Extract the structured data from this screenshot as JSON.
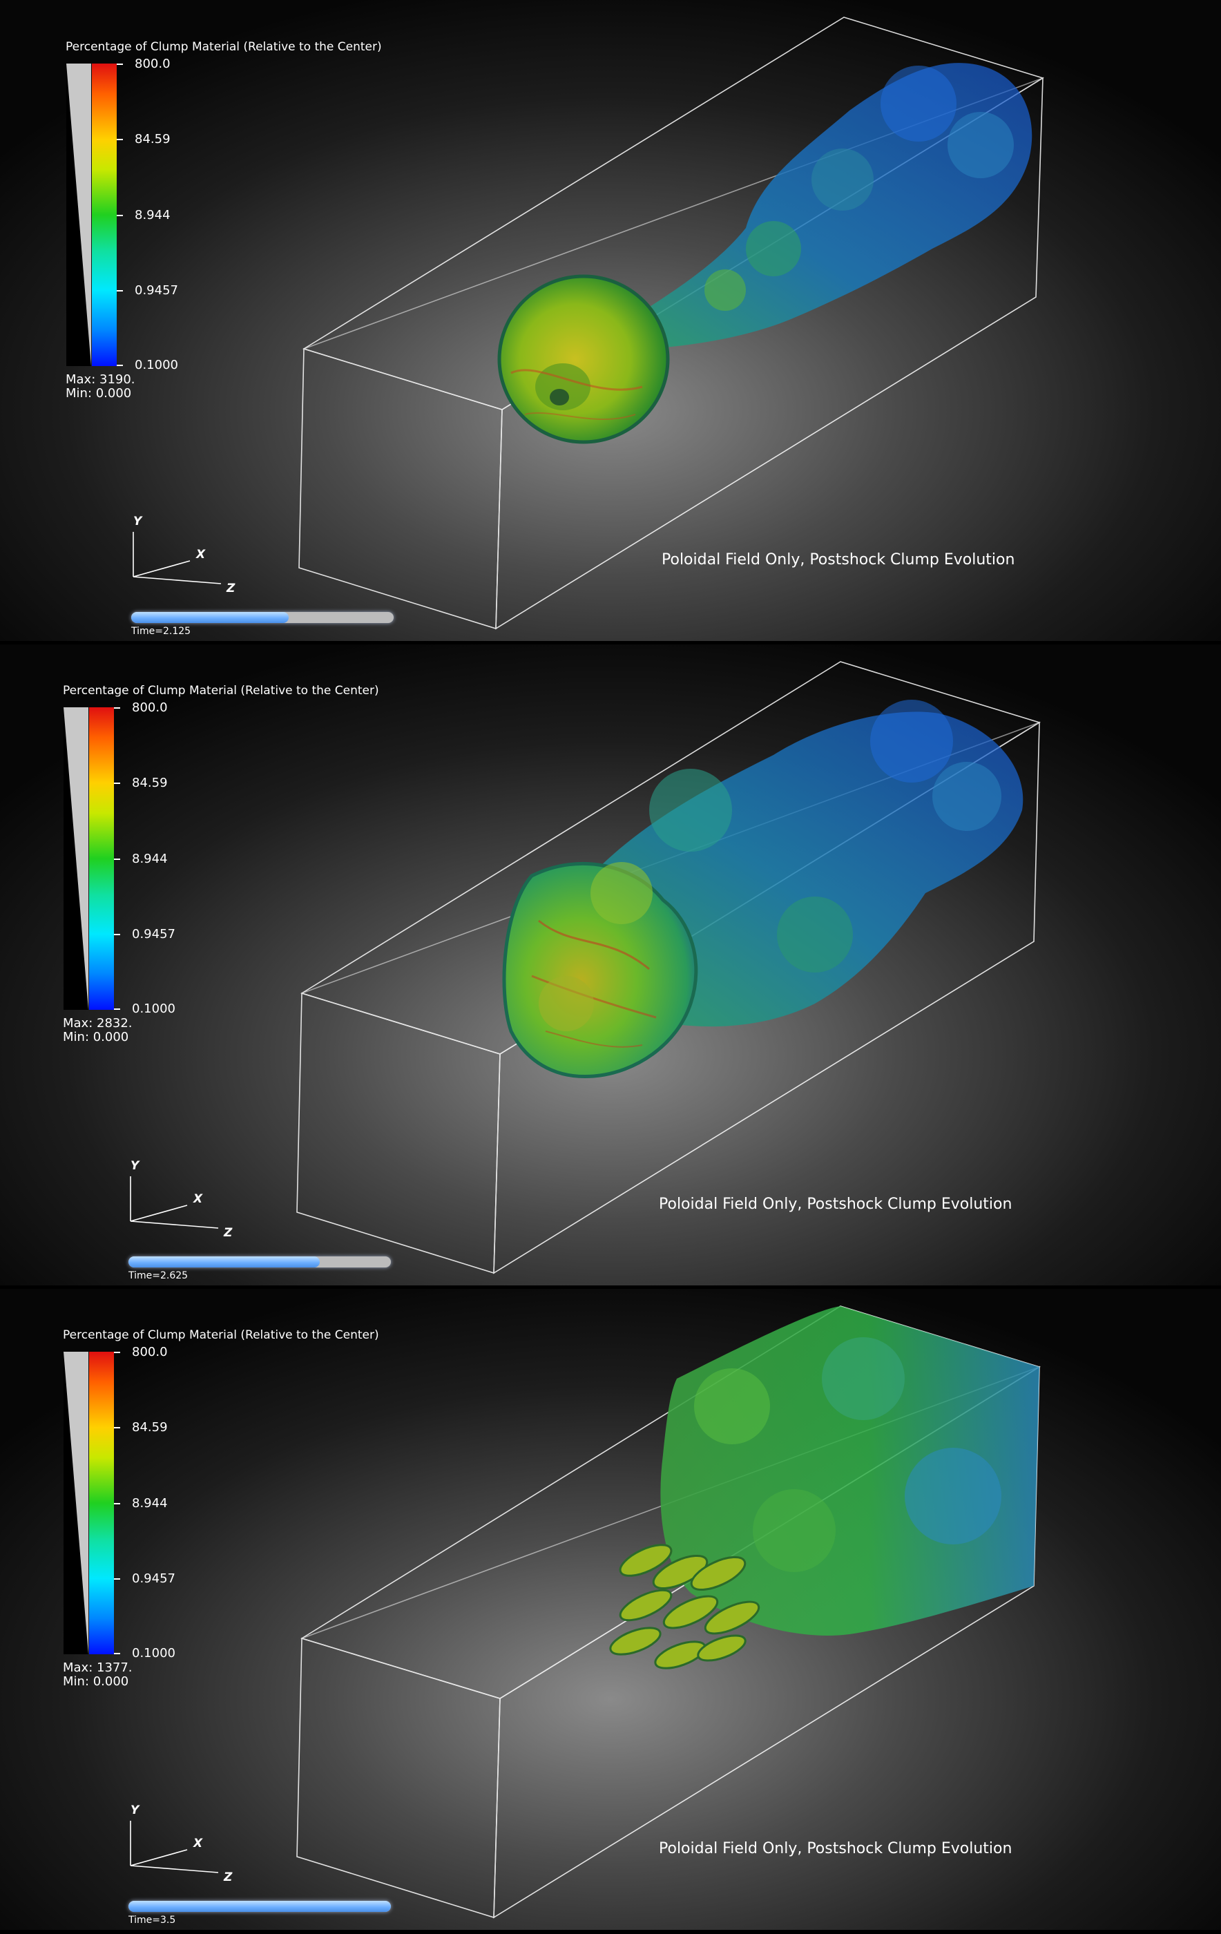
{
  "panels": [
    {
      "legend_title": "Percentage of Clump Material (Relative to the Center)",
      "tick_labels": [
        "800.0",
        "84.59",
        "8.944",
        "0.9457",
        "0.1000"
      ],
      "max_label": "Max:  3190.",
      "min_label": "Min:  0.000",
      "axes": {
        "y": "Y",
        "x": "X",
        "z": "Z"
      },
      "caption": "Poloidal Field Only, Postshock Clump Evolution",
      "time_label": "Time=2.125",
      "time_progress": 0.6
    },
    {
      "legend_title": "Percentage of Clump Material (Relative to the Center)",
      "tick_labels": [
        "800.0",
        "84.59",
        "8.944",
        "0.9457",
        "0.1000"
      ],
      "max_label": "Max:  2832.",
      "min_label": "Min:  0.000",
      "axes": {
        "y": "Y",
        "x": "X",
        "z": "Z"
      },
      "caption": "Poloidal Field Only, Postshock Clump Evolution",
      "time_label": "Time=2.625",
      "time_progress": 0.73
    },
    {
      "legend_title": "Percentage of Clump Material (Relative to the Center)",
      "tick_labels": [
        "800.0",
        "84.59",
        "8.944",
        "0.9457",
        "0.1000"
      ],
      "max_label": "Max:  1377.",
      "min_label": "Min:  0.000",
      "axes": {
        "y": "Y",
        "x": "X",
        "z": "Z"
      },
      "caption": "Poloidal Field Only, Postshock Clump Evolution",
      "time_label": "Time=3.5",
      "time_progress": 1.0
    }
  ],
  "colors": {
    "background_center": "#8a8a8a",
    "box_edges": "#ffffff",
    "colormap_high": "#e01010",
    "colormap_mid": "#20d020",
    "colormap_low": "#0010ff",
    "time_fill": "#6fb0ff"
  }
}
